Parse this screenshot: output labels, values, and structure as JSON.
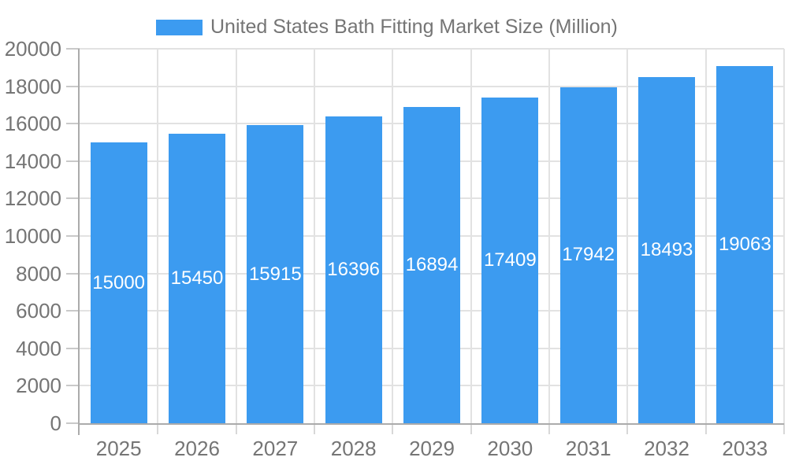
{
  "chart_data": {
    "type": "bar",
    "title": "United States Bath Fitting Market Size (Million)",
    "categories": [
      "2025",
      "2026",
      "2027",
      "2028",
      "2029",
      "2030",
      "2031",
      "2032",
      "2033"
    ],
    "series": [
      {
        "name": "United States Bath Fitting Market Size (Million)",
        "values": [
          15000,
          15450,
          15915,
          16396,
          16894,
          17409,
          17942,
          18493,
          19063
        ]
      }
    ],
    "bar_value_labels": [
      "15000",
      "15450",
      "15915",
      "16396",
      "16894",
      "17409",
      "17942",
      "18493",
      "19063"
    ],
    "xlabel": "",
    "ylabel": "",
    "ylim": [
      0,
      20000
    ],
    "yticks": [
      0,
      2000,
      4000,
      6000,
      8000,
      10000,
      12000,
      14000,
      16000,
      18000,
      20000
    ],
    "grid": true,
    "legend_position": "top"
  },
  "colors": {
    "bar": "#3c9bf0",
    "grid": "#e2e2e2",
    "axis": "#ababab",
    "y_tick": "#c9c9c9",
    "x_tick": "#d8d8d8",
    "label_text": "#757575",
    "value_text": "#ffffff",
    "background": "#ffffff"
  }
}
